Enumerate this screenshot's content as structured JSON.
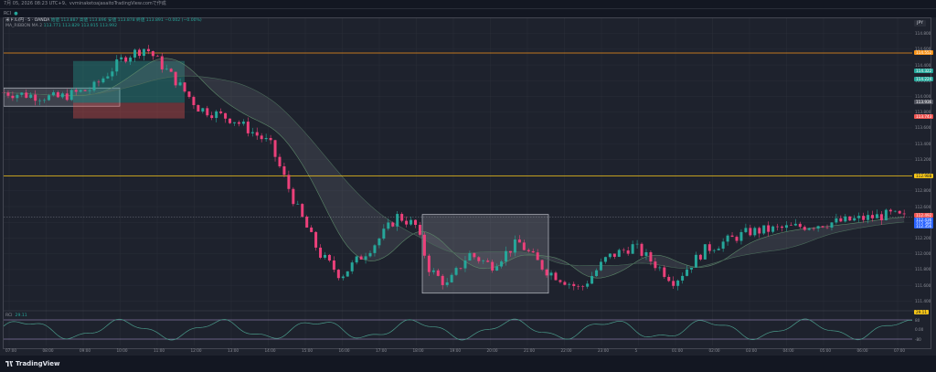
{
  "topbar": {
    "text": "7月 05, 2026 08:23 UTC+9、vvminaketoajasaitoTradingView.comで作成"
  },
  "tab": {
    "label": "RCI"
  },
  "legend": {
    "symbol": "米ドル/円 · 5 · OANDA",
    "symbol_values": "始値 113.887 高値 113.896 安値 113.878 終値 113.891 −0.002 (−0.00%)",
    "ma_label": "MA_RIBBON MA 2",
    "ma_values": "113.771  113.829  113.915  113.992"
  },
  "price_axis": {
    "button": "JPY",
    "ticks": [
      "114.800",
      "114.600",
      "114.400",
      "114.200",
      "114.000",
      "113.800",
      "113.600",
      "113.400",
      "113.200",
      "113.000",
      "112.800",
      "112.600",
      "112.400",
      "112.200",
      "112.000",
      "111.800",
      "111.600",
      "111.400"
    ],
    "tags": [
      {
        "text": "114.552",
        "color": "#f7931a",
        "price": 114.552
      },
      {
        "text": "114.322",
        "color": "#26a69a",
        "price": 114.322
      },
      {
        "text": "114.224",
        "color": "#26a69a",
        "price": 114.224
      },
      {
        "text": "113.936",
        "color": "#50535e",
        "price": 113.936
      },
      {
        "text": "113.743",
        "color": "#ef5350",
        "price": 113.743
      },
      {
        "text": "112.988",
        "color": "#f5c518",
        "price": 112.988
      },
      {
        "text": "112.492",
        "color": "#ef5350",
        "price": 112.492
      },
      {
        "text": "112.436",
        "color": "#2962ff",
        "price": 112.436
      },
      {
        "text": "112.390",
        "color": "#2962ff",
        "price": 112.39
      },
      {
        "text": "112.356",
        "color": "#2962ff",
        "price": 112.356
      }
    ]
  },
  "time_axis": {
    "ticks": [
      "07:00",
      "08:00",
      "09:00",
      "10:00",
      "11:00",
      "12:00",
      "13:00",
      "14:00",
      "15:00",
      "16:00",
      "17:00",
      "18:00",
      "19:00",
      "20:00",
      "21:00",
      "22:00",
      "23:00",
      "5",
      "01:00",
      "02:00",
      "03:00",
      "04:00",
      "05:00",
      "06:00",
      "07:00"
    ]
  },
  "oscillator": {
    "label": "RCI",
    "value": "29.11",
    "axis_ticks": [
      "80",
      "0.00",
      "-80"
    ],
    "current_tag": "29.11"
  },
  "footer": {
    "brand": "TradingView"
  },
  "chart_data": {
    "type": "candlestick",
    "symbol": "USDJPY",
    "timeframe": "5",
    "ylim": [
      111.3,
      114.9
    ],
    "horizontal_lines": [
      {
        "price": 114.552,
        "color": "#f7931a"
      },
      {
        "price": 112.988,
        "color": "#f5c518"
      }
    ],
    "trend_segments": [
      {
        "t": 0,
        "p": 114.05
      },
      {
        "t": 30,
        "p": 113.98
      },
      {
        "t": 50,
        "p": 114.1
      },
      {
        "t": 68,
        "p": 114.5
      },
      {
        "t": 80,
        "p": 114.62
      },
      {
        "t": 95,
        "p": 114.25
      },
      {
        "t": 110,
        "p": 113.85
      },
      {
        "t": 130,
        "p": 113.7
      },
      {
        "t": 150,
        "p": 113.4
      },
      {
        "t": 165,
        "p": 112.6
      },
      {
        "t": 178,
        "p": 112.0
      },
      {
        "t": 190,
        "p": 111.72
      },
      {
        "t": 210,
        "p": 112.15
      },
      {
        "t": 222,
        "p": 112.48
      },
      {
        "t": 232,
        "p": 112.36
      },
      {
        "t": 240,
        "p": 111.8
      },
      {
        "t": 250,
        "p": 111.6
      },
      {
        "t": 262,
        "p": 112.0
      },
      {
        "t": 275,
        "p": 111.85
      },
      {
        "t": 290,
        "p": 112.15
      },
      {
        "t": 305,
        "p": 111.8
      },
      {
        "t": 325,
        "p": 111.55
      },
      {
        "t": 340,
        "p": 111.95
      },
      {
        "t": 355,
        "p": 112.1
      },
      {
        "t": 368,
        "p": 111.85
      },
      {
        "t": 378,
        "p": 111.65
      },
      {
        "t": 395,
        "p": 112.05
      },
      {
        "t": 420,
        "p": 112.28
      },
      {
        "t": 450,
        "p": 112.35
      },
      {
        "t": 475,
        "p": 112.42
      },
      {
        "t": 500,
        "p": 112.5
      },
      {
        "t": 510,
        "p": 112.44
      }
    ]
  }
}
